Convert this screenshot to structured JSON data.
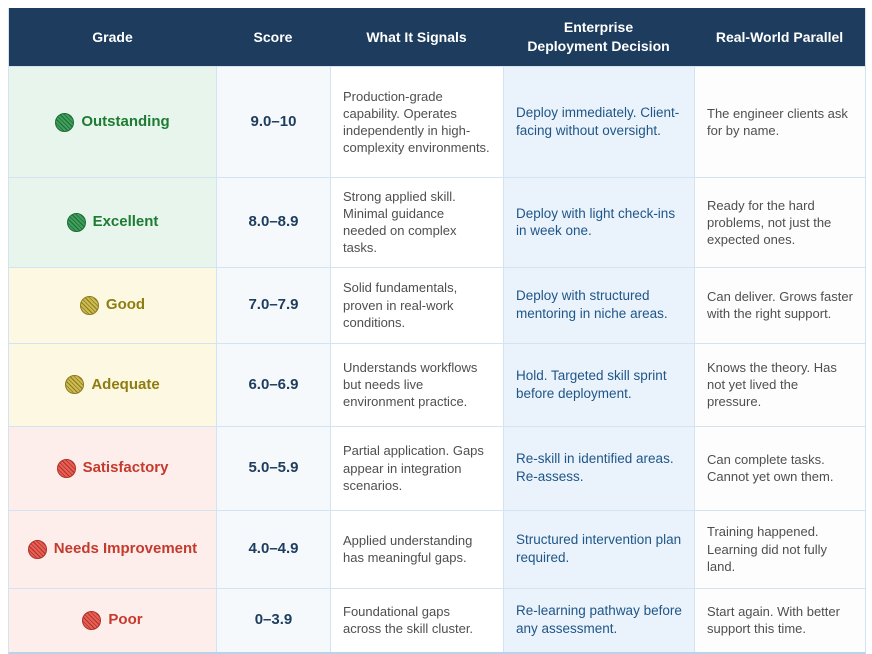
{
  "table": {
    "columns": [
      {
        "label": "Grade"
      },
      {
        "label": "Score"
      },
      {
        "label": "What It Signals"
      },
      {
        "label": "Enterprise\nDeployment Decision"
      },
      {
        "label": "Real-World Parallel"
      }
    ],
    "rows": [
      {
        "grade": "Outstanding",
        "tier": "green",
        "score": "9.0–10",
        "signals": "Production-grade capability. Operates independently in high-complexity environments.",
        "decision": "Deploy immediately. Client-facing without oversight.",
        "parallel": "The engineer clients ask for by name."
      },
      {
        "grade": "Excellent",
        "tier": "green",
        "score": "8.0–8.9",
        "signals": "Strong applied skill. Minimal guidance needed on complex tasks.",
        "decision": "Deploy with light check-ins in week one.",
        "parallel": "Ready for the hard problems, not just the expected ones."
      },
      {
        "grade": "Good",
        "tier": "yellow",
        "score": "7.0–7.9",
        "signals": "Solid fundamentals, proven in real-work conditions.",
        "decision": "Deploy with structured mentoring in niche areas.",
        "parallel": "Can deliver. Grows faster with the right support."
      },
      {
        "grade": "Adequate",
        "tier": "yellow",
        "score": "6.0–6.9",
        "signals": "Understands workflows but needs live environment practice.",
        "decision": "Hold. Targeted skill sprint before deployment.",
        "parallel": "Knows the theory. Has not yet lived the pressure."
      },
      {
        "grade": "Satisfactory",
        "tier": "red",
        "score": "5.0–5.9",
        "signals": "Partial application. Gaps appear in integration scenarios.",
        "decision": "Re-skill in identified areas. Re-assess.",
        "parallel": "Can complete tasks. Cannot yet own them."
      },
      {
        "grade": "Needs Improvement",
        "tier": "red",
        "score": "4.0–4.9",
        "signals": "Applied understanding has meaningful gaps.",
        "decision": "Structured intervention plan required.",
        "parallel": "Training happened. Learning did not fully land."
      },
      {
        "grade": "Poor",
        "tier": "red",
        "score": "0–3.9",
        "signals": "Foundational gaps across the skill cluster.",
        "decision": "Re-learning pathway before any assessment.",
        "parallel": "Start again. With better support this time."
      }
    ],
    "colors": {
      "header_bg": "#1d3c5e",
      "header_text": "#ffffff",
      "tier_green_bg": "#e7f5ec",
      "tier_green_text": "#1e7b33",
      "tier_yellow_bg": "#fdf8e1",
      "tier_yellow_text": "#8e7d12",
      "tier_red_bg": "#fdeeec",
      "tier_red_text": "#c43a2d",
      "score_text": "#1d3c5e",
      "decision_bg": "#eaf2fb",
      "decision_text": "#1f5688",
      "body_text": "#4f4f4f",
      "grid_border": "#d3e3f1"
    }
  }
}
